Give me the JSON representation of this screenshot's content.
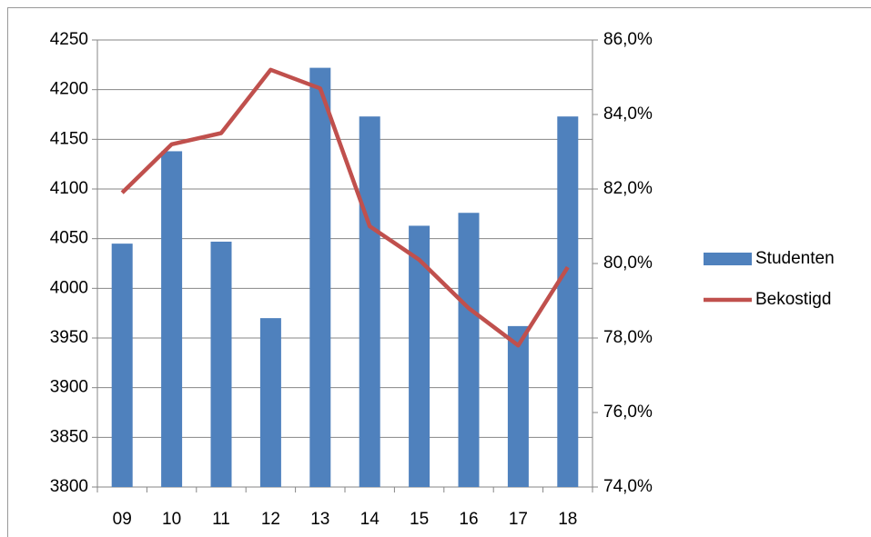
{
  "chart_data": {
    "type": "bar-line",
    "categories": [
      "09",
      "10",
      "11",
      "12",
      "13",
      "14",
      "15",
      "16",
      "17",
      "18"
    ],
    "series": [
      {
        "name": "Studenten",
        "type": "bar",
        "color": "#4f81bd",
        "values": [
          4045,
          4138,
          4047,
          3970,
          4222,
          4173,
          4063,
          4076,
          3962,
          4173
        ]
      },
      {
        "name": "Bekostigd",
        "type": "line",
        "axis": "y2",
        "color": "#c0504d",
        "values": [
          81.9,
          83.2,
          83.5,
          85.2,
          84.7,
          81.0,
          80.1,
          78.8,
          77.8,
          79.9
        ]
      }
    ],
    "ylim": [
      3800,
      4250
    ],
    "yticks": [
      3800,
      3850,
      3900,
      3950,
      4000,
      4050,
      4100,
      4150,
      4200,
      4250
    ],
    "y2lim": [
      74,
      86
    ],
    "y2ticks": [
      {
        "value": 74,
        "label": "74,0%"
      },
      {
        "value": 76,
        "label": "76,0%"
      },
      {
        "value": 78,
        "label": "78,0%"
      },
      {
        "value": 80,
        "label": "80,0%"
      },
      {
        "value": 82,
        "label": "82,0%"
      },
      {
        "value": 84,
        "label": "84,0%"
      },
      {
        "value": 86,
        "label": "86,0%"
      }
    ],
    "grid": true,
    "legend": "right"
  }
}
